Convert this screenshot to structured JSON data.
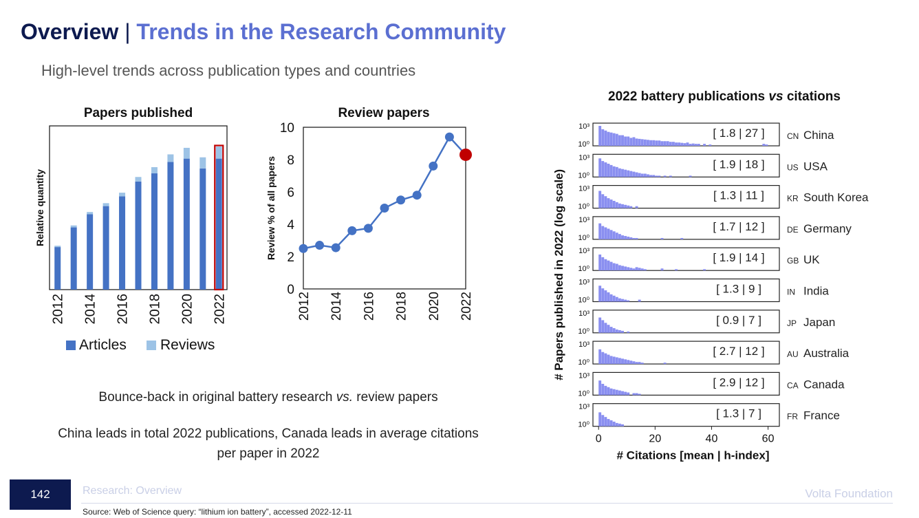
{
  "header": {
    "title_main": "Overview",
    "title_sep": "|",
    "title_sub": "Trends in the Research Community",
    "subtitle": "High-level trends across publication types and countries"
  },
  "captions": {
    "line1_pre": "Bounce-back in original battery research ",
    "line1_em": "vs.",
    "line1_post": " review papers",
    "line2": "China leads in total 2022 publications, Canada leads in average citations per paper in 2022"
  },
  "footer": {
    "page_number": "142",
    "section": "Research: Overview",
    "brand": "Volta Foundation",
    "source": "Source: Web of Science query: “lithium ion battery”, accessed 2022-12-11"
  },
  "colors": {
    "articles": "#4472c4",
    "reviews": "#9dc3e6",
    "line": "#4472c4",
    "highlight": "#c00000",
    "hist": "#8a8ff0"
  },
  "chart_data": [
    {
      "type": "bar",
      "title": "Papers published",
      "xlabel": "",
      "ylabel": "Relative quantity",
      "categories": [
        "2012",
        "2013",
        "2014",
        "2015",
        "2016",
        "2017",
        "2018",
        "2019",
        "2020",
        "2021",
        "2022"
      ],
      "tick_labels": [
        "2012",
        "2014",
        "2016",
        "2018",
        "2020",
        "2022"
      ],
      "series": [
        {
          "name": "Articles",
          "values": [
            26,
            38,
            46,
            51,
            57,
            66,
            71,
            78,
            80,
            74,
            80
          ]
        },
        {
          "name": "Reviews",
          "values": [
            0.8,
            1.2,
            1.4,
            1.8,
            2.2,
            2.8,
            3.8,
            4.6,
            6.6,
            6.8,
            7.4
          ]
        }
      ],
      "highlight_category": "2022",
      "ylim": [
        0,
        100
      ],
      "legend": "bottom"
    },
    {
      "type": "line",
      "title": "Review papers",
      "xlabel": "",
      "ylabel": "Review % of all papers",
      "x": [
        2012,
        2013,
        2014,
        2015,
        2016,
        2017,
        2018,
        2019,
        2020,
        2021,
        2022
      ],
      "x_tick_labels": [
        "2012",
        "2014",
        "2016",
        "2018",
        "2020",
        "2022"
      ],
      "y": [
        2.5,
        2.7,
        2.55,
        3.6,
        3.75,
        5.0,
        5.5,
        5.8,
        7.6,
        9.4,
        8.3
      ],
      "y_tick_labels": [
        "0",
        "2",
        "4",
        "6",
        "8",
        "10"
      ],
      "ylim": [
        0,
        10
      ],
      "highlight_x": 2022
    },
    {
      "type": "bar",
      "title_pre": "2022 battery publications ",
      "title_em": "vs",
      "title_post": " citations",
      "xlabel": "# Citations [mean | h-index]",
      "ylabel": "# Papers published in 2022 (log scale)",
      "x_tick_labels": [
        "0",
        "20",
        "40",
        "60"
      ],
      "xlim": [
        -2,
        64
      ],
      "y_tick_labels": [
        "10³",
        "10⁰"
      ],
      "panels": [
        {
          "code": "CN",
          "country": "China",
          "stats": "[ 1.8 | 27 ]",
          "log_counts": [
            3,
            2.5,
            2.3,
            2.1,
            2,
            1.9,
            1.8,
            1.6,
            1.6,
            1.4,
            1.4,
            1.2,
            1.3,
            1.1,
            1.05,
            1,
            0.95,
            0.9,
            0.85,
            0.85,
            0.8,
            0.8,
            0.7,
            0.7,
            0.7,
            0.6,
            0.6,
            0.5,
            0.5,
            0.45,
            0.4,
            0.5,
            0.3,
            0.35,
            0.3,
            0.3,
            0,
            0.3,
            0,
            0.2,
            0,
            0,
            0,
            0,
            0,
            0,
            0,
            0,
            0,
            0,
            0,
            0,
            0,
            0,
            0,
            0,
            0,
            0,
            0.3,
            0.2
          ]
        },
        {
          "code": "US",
          "country": "USA",
          "stats": "[ 1.9 | 18 ]",
          "log_counts": [
            2.8,
            2.4,
            2.2,
            2,
            1.8,
            1.6,
            1.5,
            1.3,
            1.2,
            1.1,
            1,
            0.9,
            0.8,
            0.7,
            0.6,
            0.5,
            0.5,
            0.4,
            0.3,
            0.3,
            0.2,
            0.2,
            0,
            0.2,
            0,
            0.2,
            0,
            0,
            0,
            0,
            0,
            0,
            0.2,
            0,
            0,
            0,
            0,
            0,
            0,
            0,
            0,
            0,
            0,
            0,
            0,
            0,
            0,
            0,
            0,
            0,
            0,
            0,
            0,
            0,
            0,
            0,
            0,
            0,
            0,
            0,
            0
          ]
        },
        {
          "code": "KR",
          "country": "South Korea",
          "stats": "[ 1.3 | 11 ]",
          "log_counts": [
            2.6,
            2.1,
            1.8,
            1.5,
            1.3,
            1.1,
            0.9,
            0.7,
            0.6,
            0.5,
            0.4,
            0.3,
            0,
            0.3,
            0,
            0,
            0,
            0,
            0,
            0,
            0,
            0,
            0,
            0,
            0,
            0,
            0,
            0,
            0,
            0,
            0,
            0,
            0,
            0,
            0,
            0,
            0,
            0,
            0,
            0,
            0,
            0,
            0,
            0,
            0,
            0,
            0,
            0,
            0,
            0,
            0,
            0,
            0,
            0,
            0,
            0,
            0,
            0,
            0,
            0,
            0
          ]
        },
        {
          "code": "DE",
          "country": "Germany",
          "stats": "[ 1.7 | 12 ]",
          "log_counts": [
            2.4,
            2,
            1.8,
            1.6,
            1.4,
            1.2,
            1,
            0.8,
            0.6,
            0.5,
            0.4,
            0.3,
            0.2,
            0.2,
            0,
            0,
            0,
            0,
            0,
            0,
            0,
            0,
            0.2,
            0,
            0,
            0,
            0,
            0,
            0,
            0.2,
            0,
            0,
            0,
            0,
            0,
            0,
            0,
            0,
            0,
            0,
            0,
            0,
            0,
            0,
            0,
            0,
            0,
            0,
            0,
            0,
            0,
            0,
            0,
            0,
            0,
            0,
            0,
            0,
            0,
            0,
            0
          ]
        },
        {
          "code": "GB",
          "country": "UK",
          "stats": "[ 1.9 | 14 ]",
          "log_counts": [
            2.4,
            2,
            1.7,
            1.5,
            1.3,
            1.1,
            1,
            0.8,
            0.7,
            0.6,
            0.5,
            0.4,
            0.3,
            0.5,
            0.4,
            0.3,
            0.2,
            0,
            0,
            0,
            0,
            0,
            0.3,
            0,
            0,
            0,
            0,
            0.2,
            0,
            0,
            0,
            0,
            0,
            0,
            0,
            0,
            0,
            0.2,
            0,
            0,
            0,
            0,
            0,
            0,
            0,
            0,
            0,
            0,
            0,
            0,
            0,
            0,
            0,
            0,
            0,
            0,
            0,
            0,
            0,
            0,
            0
          ]
        },
        {
          "code": "IN",
          "country": "India",
          "stats": "[ 1.3 | 9 ]",
          "log_counts": [
            2.4,
            2,
            1.7,
            1.4,
            1.1,
            0.9,
            0.7,
            0.5,
            0.4,
            0.3,
            0.2,
            0,
            0,
            0,
            0.3,
            0,
            0,
            0,
            0,
            0,
            0,
            0,
            0,
            0,
            0,
            0,
            0,
            0,
            0,
            0,
            0,
            0,
            0,
            0,
            0,
            0,
            0,
            0,
            0,
            0,
            0,
            0,
            0,
            0,
            0,
            0,
            0,
            0,
            0,
            0,
            0,
            0,
            0,
            0,
            0,
            0,
            0,
            0,
            0,
            0,
            0
          ]
        },
        {
          "code": "JP",
          "country": "Japan",
          "stats": "[ 0.9 | 7 ]",
          "log_counts": [
            2.3,
            1.9,
            1.5,
            1.2,
            0.9,
            0.7,
            0.5,
            0.4,
            0.3,
            0,
            0.2,
            0,
            0,
            0,
            0,
            0,
            0,
            0,
            0,
            0,
            0,
            0,
            0,
            0,
            0,
            0,
            0,
            0,
            0,
            0,
            0,
            0,
            0,
            0,
            0,
            0,
            0,
            0,
            0,
            0,
            0,
            0,
            0,
            0,
            0,
            0,
            0,
            0,
            0,
            0,
            0,
            0,
            0,
            0,
            0,
            0,
            0,
            0,
            0,
            0,
            0
          ]
        },
        {
          "code": "AU",
          "country": "Australia",
          "stats": "[ 2.7 | 12 ]",
          "log_counts": [
            2.2,
            1.8,
            1.6,
            1.4,
            1.2,
            1.1,
            1,
            0.9,
            0.8,
            0.7,
            0.6,
            0.5,
            0.4,
            0.3,
            0.3,
            0.2,
            0,
            0,
            0,
            0,
            0,
            0,
            0,
            0.2,
            0,
            0,
            0,
            0,
            0,
            0,
            0,
            0,
            0,
            0,
            0,
            0,
            0,
            0,
            0,
            0,
            0,
            0,
            0,
            0,
            0,
            0,
            0,
            0,
            0,
            0,
            0,
            0,
            0,
            0,
            0,
            0,
            0,
            0,
            0,
            0,
            0
          ]
        },
        {
          "code": "CA",
          "country": "Canada",
          "stats": "[ 2.9 | 12 ]",
          "log_counts": [
            2.2,
            1.7,
            1.4,
            1.2,
            1,
            0.9,
            0.8,
            0.7,
            0.6,
            0.5,
            0.4,
            0,
            0.3,
            0.3,
            0.2,
            0,
            0,
            0,
            0,
            0,
            0,
            0,
            0,
            0,
            0,
            0,
            0,
            0,
            0,
            0,
            0,
            0,
            0,
            0,
            0,
            0,
            0,
            0,
            0,
            0,
            0,
            0,
            0,
            0,
            0,
            0,
            0,
            0,
            0,
            0,
            0,
            0,
            0,
            0,
            0,
            0,
            0,
            0,
            0,
            0,
            0
          ]
        },
        {
          "code": "FR",
          "country": "France",
          "stats": "[ 1.3 | 7 ]",
          "log_counts": [
            2.1,
            1.7,
            1.4,
            1.1,
            0.9,
            0.7,
            0.5,
            0.4,
            0.3,
            0,
            0,
            0,
            0,
            0,
            0,
            0,
            0,
            0,
            0,
            0,
            0,
            0,
            0,
            0,
            0,
            0,
            0,
            0,
            0,
            0,
            0,
            0,
            0,
            0,
            0,
            0,
            0,
            0,
            0,
            0,
            0,
            0,
            0,
            0,
            0,
            0,
            0,
            0,
            0,
            0,
            0,
            0,
            0,
            0,
            0,
            0,
            0,
            0,
            0,
            0,
            0
          ]
        }
      ]
    }
  ]
}
